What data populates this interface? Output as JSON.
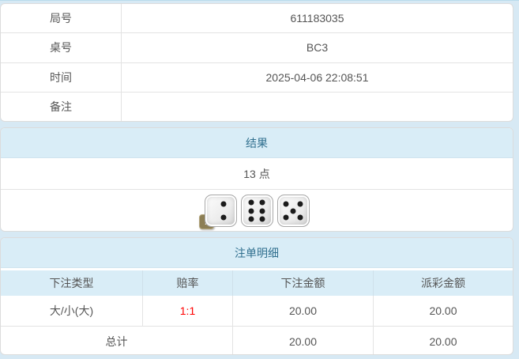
{
  "info_table": {
    "rows": [
      {
        "label": "局号",
        "value": "611183035"
      },
      {
        "label": "桌号",
        "value": "BC3"
      },
      {
        "label": "时间",
        "value": "2025-04-06 22:08:51"
      },
      {
        "label": "备注",
        "value": ""
      }
    ]
  },
  "result_section": {
    "header": "结果",
    "points": "13 点",
    "dice": [
      2,
      6,
      5
    ],
    "info_badge": "i"
  },
  "bets_section": {
    "header": "注单明细",
    "columns": [
      "下注类型",
      "赔率",
      "下注金额",
      "派彩金额"
    ],
    "rows": [
      {
        "bet_type": "大/小(大)",
        "odds": "1:1",
        "bet_amount": "20.00",
        "payout_amount": "20.00"
      }
    ],
    "total": {
      "label": "总计",
      "bet_amount": "20.00",
      "payout_amount": "20.00"
    }
  },
  "colors": {
    "page_bg": "#d7e9f4",
    "header_bg": "#d9edf7",
    "header_text": "#31708f",
    "body_text": "#555555",
    "odds_red": "#ff0000",
    "border": "#e3e3e3"
  }
}
